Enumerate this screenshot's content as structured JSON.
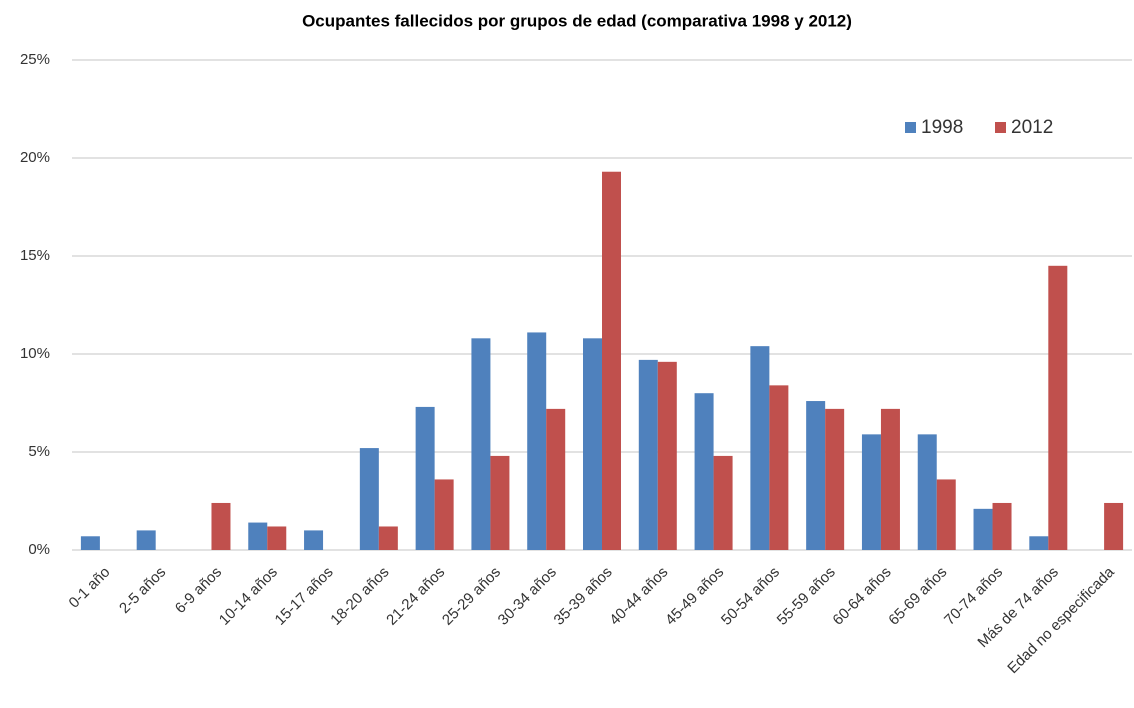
{
  "chart_data": {
    "type": "bar",
    "title": "Ocupantes fallecidos por grupos de edad (comparativa 1998 y 2012)",
    "categories": [
      "0-1 año",
      "2-5 años",
      "6-9 años",
      "10-14 años",
      "15-17 años",
      "18-20 años",
      "21-24 años",
      "25-29 años",
      "30-34 años",
      "35-39 años",
      "40-44 años",
      "45-49 años",
      "50-54 años",
      "55-59 años",
      "60-64 años",
      "65-69 años",
      "70-74 años",
      "Más de 74 años",
      "Edad no especificada"
    ],
    "series": [
      {
        "name": "1998",
        "color": "#4f81bd",
        "values": [
          0.7,
          1.0,
          0,
          1.4,
          1.0,
          5.2,
          7.3,
          10.8,
          11.1,
          10.8,
          9.7,
          8.0,
          10.4,
          7.6,
          5.9,
          5.9,
          2.1,
          0.7,
          0
        ]
      },
      {
        "name": "2012",
        "color": "#c0504d",
        "values": [
          0,
          0,
          2.4,
          1.2,
          0,
          1.2,
          3.6,
          4.8,
          7.2,
          19.3,
          9.6,
          4.8,
          8.4,
          7.2,
          7.2,
          3.6,
          2.4,
          14.5,
          2.4
        ]
      }
    ],
    "ylim": [
      0,
      25
    ],
    "yticks": [
      {
        "value": 0,
        "label": "0%"
      },
      {
        "value": 5,
        "label": "5%"
      },
      {
        "value": 10,
        "label": "10%"
      },
      {
        "value": 15,
        "label": "15%"
      },
      {
        "value": 20,
        "label": "20%"
      },
      {
        "value": 25,
        "label": "25%"
      }
    ],
    "grid": true,
    "legend": "top-right"
  }
}
